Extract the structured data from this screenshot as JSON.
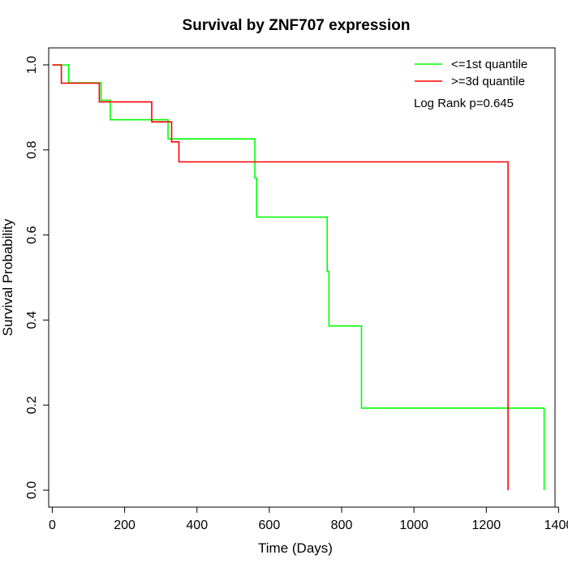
{
  "chart_data": {
    "type": "line",
    "title": "Survival by ZNF707 expression",
    "xlabel": "Time (Days)",
    "ylabel": "Survival Probability",
    "xlim": [
      -10,
      1390
    ],
    "ylim": [
      -0.04,
      1.04
    ],
    "xticks": [
      0,
      200,
      400,
      600,
      800,
      1000,
      1200,
      1400
    ],
    "yticks": [
      0.0,
      0.2,
      0.4,
      0.6,
      0.8,
      1.0
    ],
    "xtick_labels": [
      "0",
      "200",
      "400",
      "600",
      "800",
      "1000",
      "1200",
      "1400"
    ],
    "ytick_labels": [
      "0.0",
      "0.2",
      "0.4",
      "0.6",
      "0.8",
      "1.0"
    ],
    "grid": false,
    "legend_position": "top-right",
    "annotation": "Log Rank p=0.645",
    "series": [
      {
        "name": "<=1st quantile",
        "color": "#00ff00",
        "x": [
          0,
          45,
          135,
          145,
          160,
          315,
          320,
          550,
          560,
          565,
          760,
          765,
          855,
          1360,
          1360
        ],
        "y": [
          1.0,
          0.958,
          0.917,
          0.917,
          0.871,
          0.871,
          0.826,
          0.826,
          0.734,
          0.642,
          0.514,
          0.386,
          0.193,
          0.193,
          0.0
        ]
      },
      {
        "name": ">=3d quantile",
        "color": "#ff0000",
        "x": [
          0,
          25,
          130,
          275,
          330,
          350,
          1260,
          1260
        ],
        "y": [
          1.0,
          0.957,
          0.913,
          0.866,
          0.819,
          0.772,
          0.772,
          0.0
        ]
      }
    ]
  }
}
